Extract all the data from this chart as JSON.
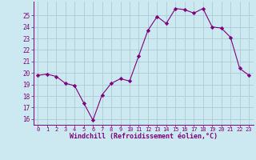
{
  "x": [
    0,
    1,
    2,
    3,
    4,
    5,
    6,
    7,
    8,
    9,
    10,
    11,
    12,
    13,
    14,
    15,
    16,
    17,
    18,
    19,
    20,
    21,
    22,
    23
  ],
  "y": [
    19.8,
    19.9,
    19.7,
    19.1,
    18.9,
    17.4,
    15.9,
    18.1,
    19.1,
    19.5,
    19.3,
    21.5,
    23.7,
    24.9,
    24.3,
    25.6,
    25.5,
    25.2,
    25.6,
    24.0,
    23.9,
    23.1,
    20.4,
    19.8
  ],
  "line_color": "#800080",
  "marker": "D",
  "marker_size": 2.2,
  "bg_color": "#cce8f0",
  "grid_color": "#aaccd8",
  "xlabel": "Windchill (Refroidissement éolien,°C)",
  "xlabel_color": "#800080",
  "tick_color": "#800080",
  "ylim": [
    15.5,
    26.2
  ],
  "yticks": [
    16,
    17,
    18,
    19,
    20,
    21,
    22,
    23,
    24,
    25
  ],
  "xticks": [
    0,
    1,
    2,
    3,
    4,
    5,
    6,
    7,
    8,
    9,
    10,
    11,
    12,
    13,
    14,
    15,
    16,
    17,
    18,
    19,
    20,
    21,
    22,
    23
  ],
  "spine_color": "#800080"
}
